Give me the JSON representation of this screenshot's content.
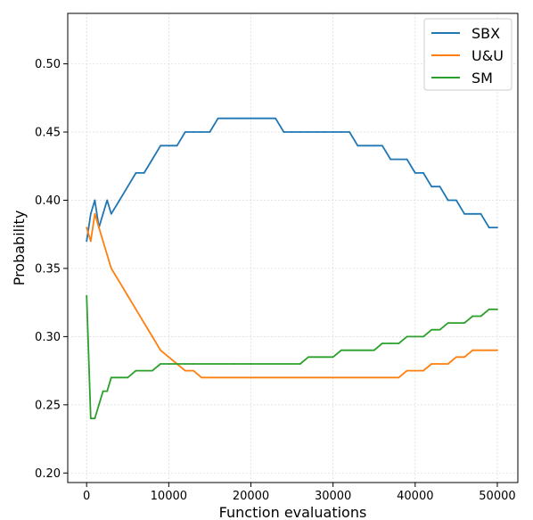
{
  "chart_data": {
    "type": "line",
    "title": "",
    "xlabel": "Function evaluations",
    "ylabel": "Probability",
    "xlim": [
      -2300,
      52500
    ],
    "ylim": [
      0.193,
      0.537
    ],
    "xticks": [
      0,
      10000,
      20000,
      30000,
      40000,
      50000
    ],
    "yticks": [
      0.2,
      0.25,
      0.3,
      0.35,
      0.4,
      0.45,
      0.5
    ],
    "grid": true,
    "legend_position": "top-right",
    "series": [
      {
        "name": "SBX",
        "color": "#1f77b4",
        "x": [
          0,
          500,
          1000,
          1500,
          2000,
          2500,
          3000,
          4000,
          5000,
          6000,
          7000,
          8000,
          9000,
          10000,
          11000,
          12000,
          13000,
          14000,
          15000,
          16000,
          17000,
          18000,
          19000,
          20000,
          21000,
          22000,
          23000,
          24000,
          25000,
          26000,
          27000,
          28000,
          29000,
          30000,
          31000,
          32000,
          33000,
          34000,
          35000,
          36000,
          37000,
          38000,
          39000,
          40000,
          41000,
          42000,
          43000,
          44000,
          45000,
          46000,
          47000,
          48000,
          49000,
          50000
        ],
        "values": [
          0.37,
          0.39,
          0.4,
          0.38,
          0.39,
          0.4,
          0.39,
          0.4,
          0.41,
          0.42,
          0.42,
          0.43,
          0.44,
          0.44,
          0.44,
          0.45,
          0.45,
          0.45,
          0.45,
          0.46,
          0.46,
          0.46,
          0.46,
          0.46,
          0.46,
          0.46,
          0.46,
          0.45,
          0.45,
          0.45,
          0.45,
          0.45,
          0.45,
          0.45,
          0.45,
          0.45,
          0.44,
          0.44,
          0.44,
          0.44,
          0.43,
          0.43,
          0.43,
          0.42,
          0.42,
          0.41,
          0.41,
          0.4,
          0.4,
          0.39,
          0.39,
          0.39,
          0.38,
          0.38
        ]
      },
      {
        "name": "U&U",
        "color": "#ff7f0e",
        "x": [
          0,
          500,
          1000,
          1500,
          2000,
          2500,
          3000,
          4000,
          5000,
          6000,
          7000,
          8000,
          9000,
          10000,
          11000,
          12000,
          13000,
          14000,
          15000,
          16000,
          17000,
          18000,
          19000,
          20000,
          21000,
          22000,
          23000,
          24000,
          25000,
          26000,
          27000,
          28000,
          29000,
          30000,
          31000,
          32000,
          33000,
          34000,
          35000,
          36000,
          37000,
          38000,
          39000,
          40000,
          41000,
          42000,
          43000,
          44000,
          45000,
          46000,
          47000,
          48000,
          49000,
          50000
        ],
        "values": [
          0.38,
          0.37,
          0.39,
          0.38,
          0.37,
          0.36,
          0.35,
          0.34,
          0.33,
          0.32,
          0.31,
          0.3,
          0.29,
          0.285,
          0.28,
          0.275,
          0.275,
          0.27,
          0.27,
          0.27,
          0.27,
          0.27,
          0.27,
          0.27,
          0.27,
          0.27,
          0.27,
          0.27,
          0.27,
          0.27,
          0.27,
          0.27,
          0.27,
          0.27,
          0.27,
          0.27,
          0.27,
          0.27,
          0.27,
          0.27,
          0.27,
          0.27,
          0.275,
          0.275,
          0.275,
          0.28,
          0.28,
          0.28,
          0.285,
          0.285,
          0.29,
          0.29,
          0.29,
          0.29
        ]
      },
      {
        "name": "SM",
        "color": "#2ca02c",
        "x": [
          0,
          500,
          1000,
          1500,
          2000,
          2500,
          3000,
          4000,
          5000,
          6000,
          7000,
          8000,
          9000,
          10000,
          11000,
          12000,
          13000,
          14000,
          15000,
          16000,
          17000,
          18000,
          19000,
          20000,
          21000,
          22000,
          23000,
          24000,
          25000,
          26000,
          27000,
          28000,
          29000,
          30000,
          31000,
          32000,
          33000,
          34000,
          35000,
          36000,
          37000,
          38000,
          39000,
          40000,
          41000,
          42000,
          43000,
          44000,
          45000,
          46000,
          47000,
          48000,
          49000,
          50000
        ],
        "values": [
          0.33,
          0.24,
          0.24,
          0.25,
          0.26,
          0.26,
          0.27,
          0.27,
          0.27,
          0.275,
          0.275,
          0.275,
          0.28,
          0.28,
          0.28,
          0.28,
          0.28,
          0.28,
          0.28,
          0.28,
          0.28,
          0.28,
          0.28,
          0.28,
          0.28,
          0.28,
          0.28,
          0.28,
          0.28,
          0.28,
          0.285,
          0.285,
          0.285,
          0.285,
          0.29,
          0.29,
          0.29,
          0.29,
          0.29,
          0.295,
          0.295,
          0.295,
          0.3,
          0.3,
          0.3,
          0.305,
          0.305,
          0.31,
          0.31,
          0.31,
          0.315,
          0.315,
          0.32,
          0.32
        ]
      }
    ]
  }
}
